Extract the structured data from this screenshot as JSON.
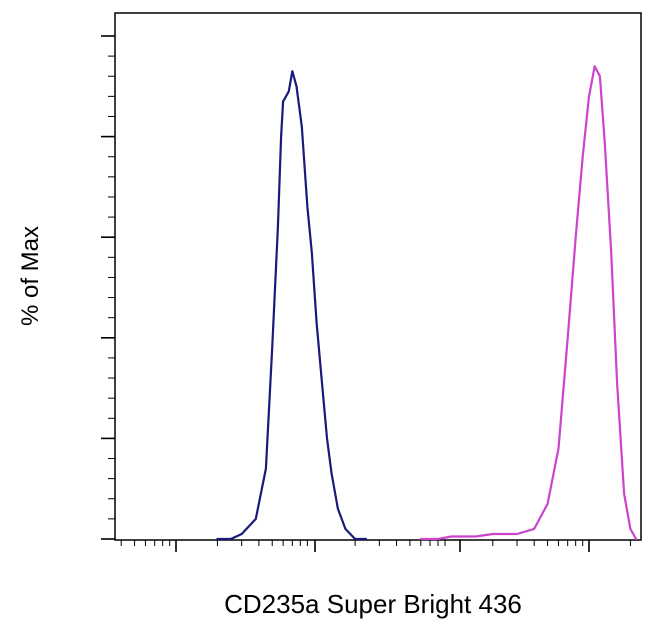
{
  "chart_data": {
    "type": "line",
    "title": "",
    "xlabel": "CD235a Super Bright 436",
    "ylabel": "% of Max",
    "x_scale": "log",
    "x_tick_labels": [],
    "y_tick_labels": [],
    "ylim": [
      0,
      100
    ],
    "grid": false,
    "legend": "none",
    "series": [
      {
        "color": "#1a1a7a",
        "x": [
          0.02,
          0.025,
          0.03,
          0.038,
          0.045,
          0.05,
          0.055,
          0.058,
          0.06,
          0.063,
          0.066,
          0.07,
          0.075,
          0.082,
          0.09,
          0.097,
          0.105,
          0.115,
          0.125,
          0.135,
          0.15,
          0.17,
          0.2,
          0.24
        ],
        "y": [
          0,
          0,
          1,
          4,
          14,
          38,
          62,
          80,
          87,
          88,
          89,
          93,
          90,
          82,
          66,
          57,
          43,
          31,
          20,
          13,
          6,
          2,
          0,
          0
        ]
      },
      {
        "color": "#cc44cc",
        "x": [
          0.6,
          0.8,
          1.0,
          1.5,
          2.0,
          3.0,
          4.0,
          5.0,
          6.0,
          7.0,
          8.0,
          9.0,
          10.0,
          11.0,
          12.0,
          13.0,
          14.5,
          16.0,
          18.0,
          20.0,
          22.0
        ],
        "y": [
          0,
          0,
          0.5,
          0.5,
          1,
          1,
          2,
          7,
          18,
          40,
          60,
          76,
          88,
          94,
          92,
          79,
          57,
          31,
          9,
          2,
          0
        ]
      }
    ]
  }
}
